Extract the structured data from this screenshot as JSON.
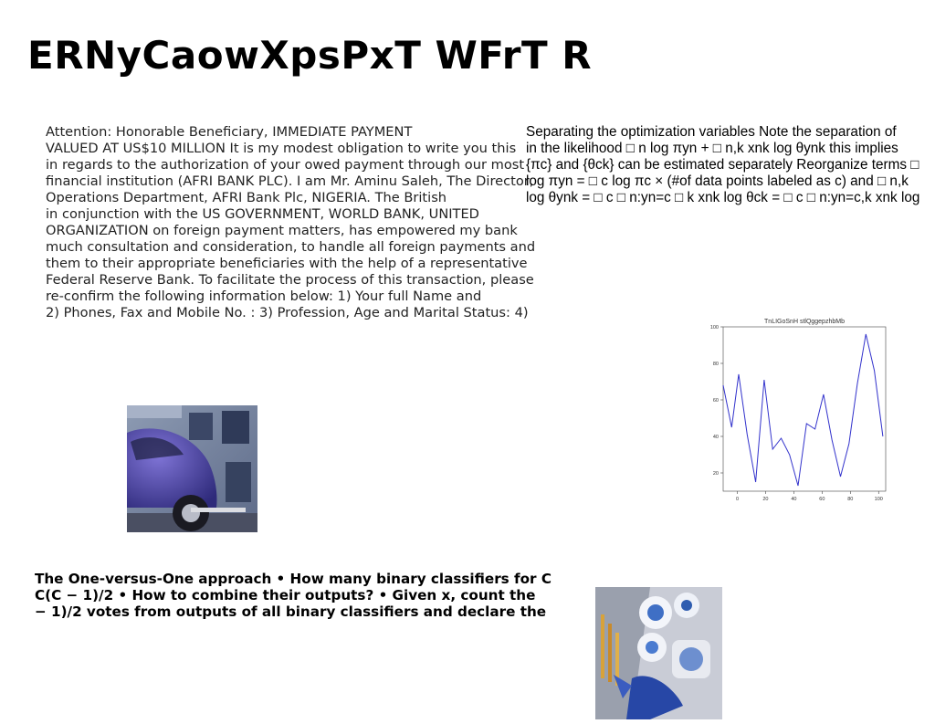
{
  "title": "ERNyCaowXpsPxT WFrT R",
  "letter": {
    "lines": [
      "Attention: Honorable Beneficiary, IMMEDIATE PAYMENT",
      "VALUED AT US$10 MILLION It is my modest obligation to write you this",
      "in regards to the authorization of your owed payment through our most",
      "financial institution (AFRI BANK PLC). I am Mr. Aminu Saleh, The Director,",
      "Operations Department, AFRI Bank Plc, NIGERIA. The British",
      "in conjunction with the US GOVERNMENT, WORLD BANK, UNITED",
      "ORGANIZATION on foreign payment matters, has empowered my bank",
      "much consultation and consideration, to handle all foreign payments and",
      "them to their appropriate beneficiaries with the help of a representative",
      "Federal Reserve Bank. To facilitate the process of this transaction, please",
      "re-confirm the following information below: 1) Your full Name and",
      "2) Phones, Fax and Mobile No. : 3) Profession, Age and Marital Status: 4)"
    ]
  },
  "math": {
    "lines": [
      "Separating the optimization variables Note the separation of",
      "in the likelihood □ n log πyn + □ n,k xnk log θynk this implies",
      "{πc} and {θck} can be estimated separately Reorganize terms □",
      "log πyn = □ c log πc × (#of data points labeled as c) and □ n,k",
      "log θynk = □ c □ n:yn=c □ k xnk log θck = □ c □ n:yn=c,k xnk log"
    ]
  },
  "ovo": {
    "lines": [
      "The One-versus-One approach • How many binary classifiers for C",
      "C(C − 1)/2 • How to combine their outputs? • Given x, count the",
      "− 1)/2 votes from outputs of all binary classifiers and declare the"
    ]
  },
  "images": {
    "car": "purple-vintage-car-photo",
    "items": "blue-white-hanukkah-items-photo"
  },
  "chart_data": {
    "type": "line",
    "title": "TnLIGoSnH stlQggepzhbMb",
    "xlabel": "",
    "ylabel": "",
    "xlim": [
      -10,
      105
    ],
    "ylim": [
      10,
      100
    ],
    "xticks": [
      0,
      20,
      40,
      60,
      80,
      100
    ],
    "yticks": [
      20,
      40,
      60,
      80,
      100
    ],
    "grid": false,
    "color": "#3333cc",
    "x": [
      -10,
      -4,
      1,
      7,
      13,
      19,
      25,
      31,
      37,
      43,
      49,
      55,
      61,
      67,
      73,
      79,
      85,
      91,
      97
    ],
    "y": [
      68,
      45,
      74,
      41,
      15,
      71,
      33,
      39,
      30,
      13,
      47,
      44,
      63,
      38,
      18,
      36,
      69,
      96,
      76
    ],
    "extra": [
      40
    ]
  }
}
